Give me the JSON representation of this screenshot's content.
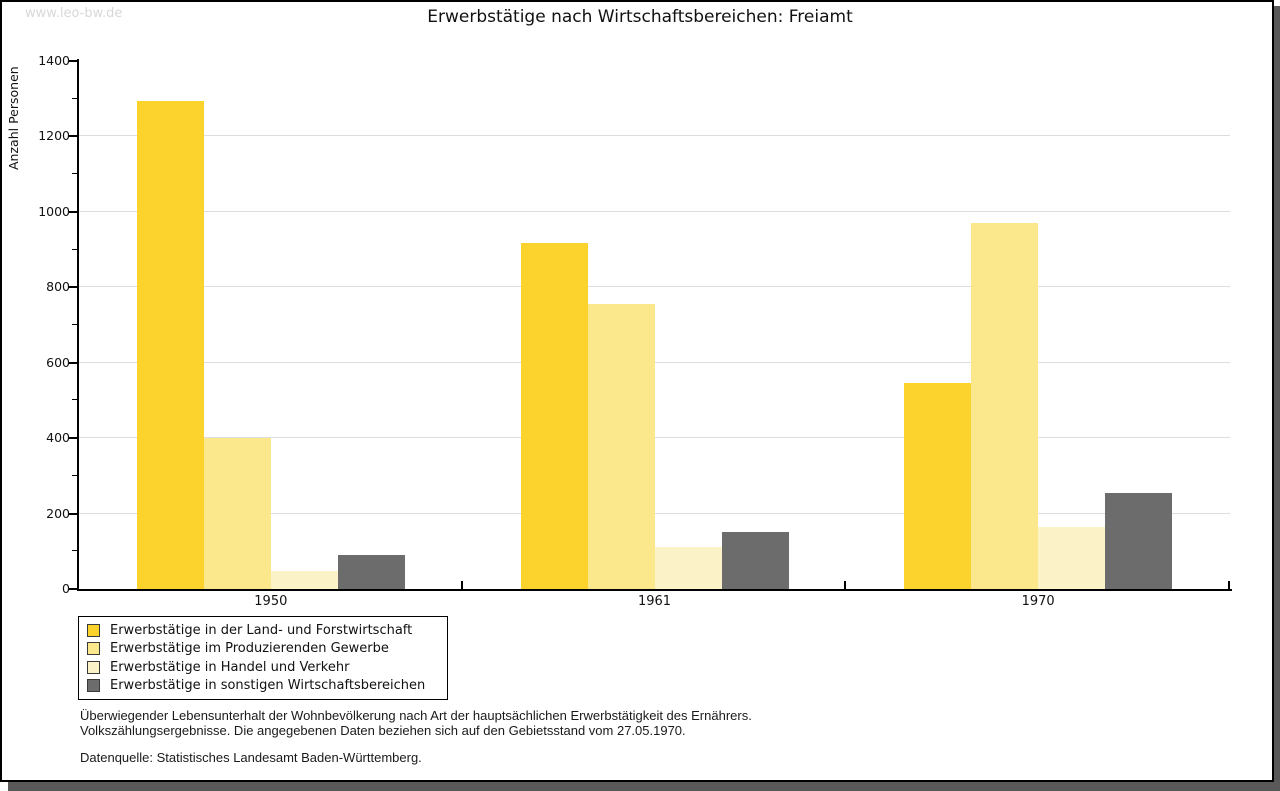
{
  "watermark": "www.leo-bw.de",
  "title": "Erwerbstätige nach Wirtschaftsbereichen: Freiamt",
  "chart_data": {
    "type": "bar",
    "title": "Erwerbstätige nach Wirtschaftsbereichen: Freiamt",
    "categories": [
      "1950",
      "1961",
      "1970"
    ],
    "series": [
      {
        "name": "Erwerbstätige in der Land- und Forstwirtschaft",
        "color": "#FCD32D",
        "values": [
          1293,
          918,
          545
        ]
      },
      {
        "name": "Erwerbstätige im Produzierenden Gewerbe",
        "color": "#FBE78C",
        "values": [
          400,
          755,
          971
        ]
      },
      {
        "name": "Erwerbstätige in Handel und Verkehr",
        "color": "#FBF2C8",
        "values": [
          48,
          112,
          165
        ]
      },
      {
        "name": "Erwerbstätige in sonstigen Wirtschaftsbereichen",
        "color": "#6C6C6C",
        "values": [
          90,
          152,
          254
        ]
      }
    ],
    "xlabel": "",
    "ylabel": "Anzahl Personen",
    "ylim": [
      0,
      1400
    ],
    "ytick_step": 200,
    "ytick_minor_step": 100,
    "grid": true,
    "gridline_color": "#DDDDDD",
    "legend_position": "bottom-left"
  },
  "footnotes": [
    "Überwiegender Lebensunterhalt der Wohnbevölkerung nach Art der hauptsächlichen Erwerbstätigkeit des Ernährers.",
    "Volkszählungsergebnisse. Die angegebenen Daten beziehen sich auf den Gebietsstand vom 27.05.1970."
  ],
  "source": "Datenquelle: Statistisches Landesamt Baden-Württemberg."
}
